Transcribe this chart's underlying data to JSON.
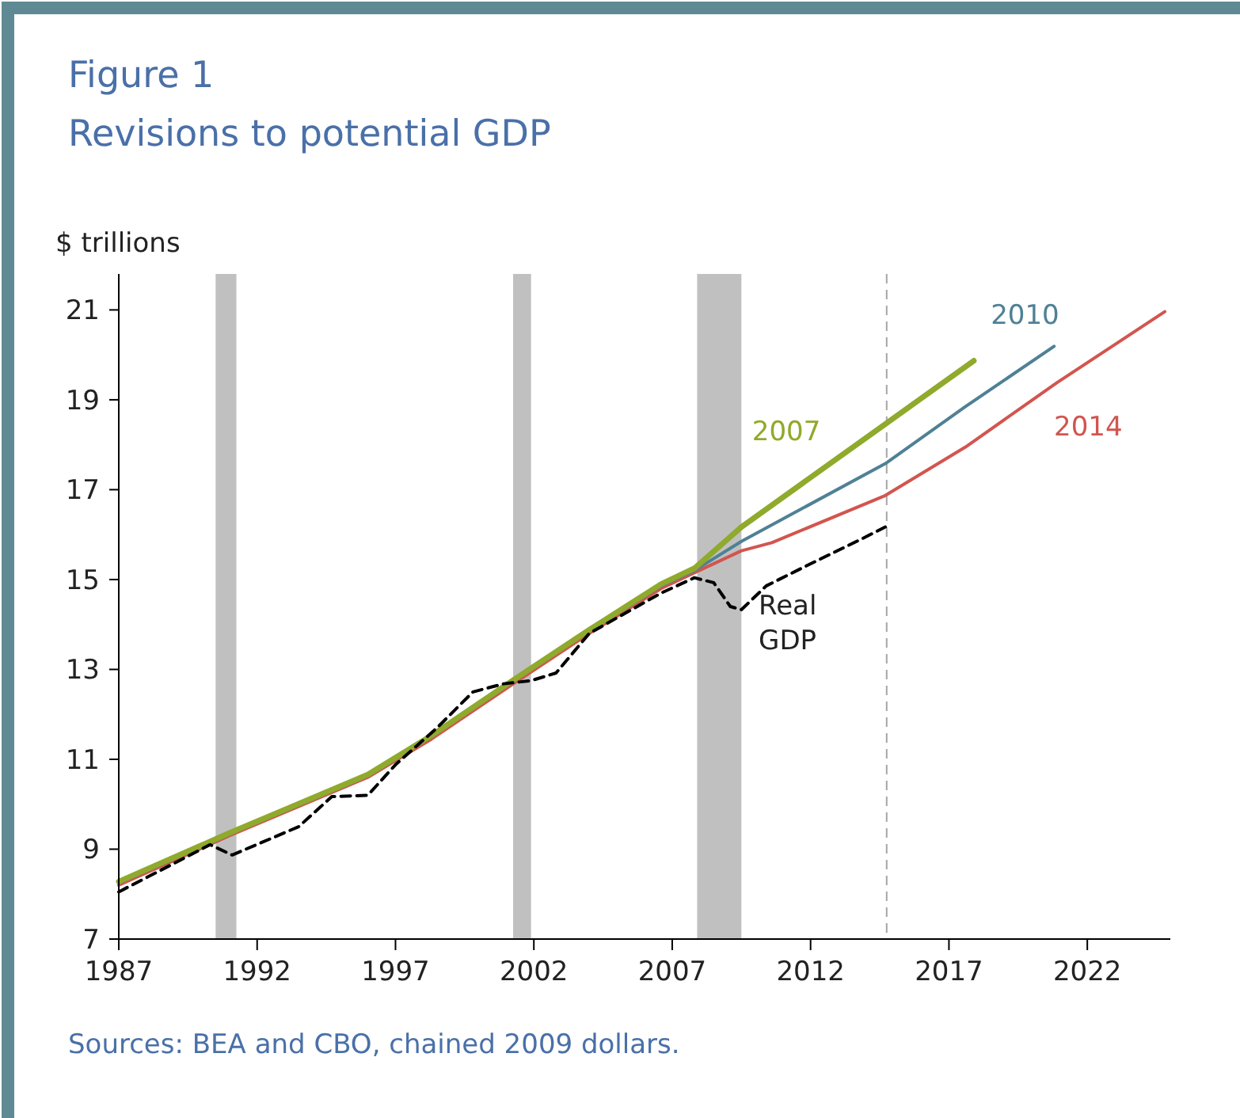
{
  "chart_data": {
    "type": "line",
    "title": "Figure 1",
    "subtitle": "Revisions to potential GDP",
    "ylabel": "$ trillions",
    "xlim": [
      1987,
      2025
    ],
    "xticks": [
      1987,
      1992,
      1997,
      2002,
      2007,
      2012,
      2017,
      2022
    ],
    "ylim": [
      7,
      21.8
    ],
    "yticks": [
      7,
      9,
      11,
      13,
      15,
      17,
      19,
      21
    ],
    "grid": false,
    "bands": [
      {
        "axis": "x",
        "from": 1990.5,
        "to": 1991.25,
        "color": "#c0c0c0"
      },
      {
        "axis": "x",
        "from": 2001.25,
        "to": 2001.9,
        "color": "#c0c0c0"
      },
      {
        "axis": "x",
        "from": 2007.9,
        "to": 2009.5,
        "color": "#c0c0c0"
      }
    ],
    "ref_lines": [
      {
        "axis": "x",
        "value": 2014.75,
        "color": "#a6a6a6",
        "line_style": "dashed"
      }
    ],
    "annotations": [
      "Sources: BEA and CBO, chained 2009 dollars."
    ],
    "series": [
      {
        "name": "2014",
        "color": "#d2554f",
        "x": [
          1987,
          1991,
          1996,
          1998.3,
          2001.3,
          2004,
          2006.6,
          2007.8,
          2009.5,
          2010.6,
          2014.7,
          2017.6,
          2020.9,
          2024.8
        ],
        "values": [
          8.2,
          9.3,
          10.6,
          11.45,
          12.7,
          13.8,
          14.8,
          15.15,
          15.64,
          15.82,
          16.87,
          17.95,
          19.38,
          20.96
        ]
      },
      {
        "name": "2010",
        "color": "#4f8195",
        "x": [
          1987,
          1991,
          1996,
          1998.3,
          2001.3,
          2004,
          2006.6,
          2007.8,
          2009.5,
          2014.7,
          2017.6,
          2020.8
        ],
        "values": [
          8.25,
          9.33,
          10.63,
          11.5,
          12.75,
          13.85,
          14.86,
          15.2,
          15.85,
          17.58,
          18.85,
          20.19
        ]
      },
      {
        "name": "2007",
        "color": "#8faa2c",
        "x": [
          1987,
          1991,
          1996,
          1998.3,
          2001.3,
          2004,
          2006.6,
          2007.8,
          2009.5,
          2014.7,
          2017.9
        ],
        "values": [
          8.28,
          9.36,
          10.66,
          11.53,
          12.78,
          13.88,
          14.9,
          15.25,
          16.17,
          18.46,
          19.87
        ]
      },
      {
        "name": "Real GDP",
        "color": "#000000",
        "line_style": "dashed",
        "x": [
          1987,
          1990.3,
          1991.1,
          1993.5,
          1994.7,
          1996,
          1997,
          1998.5,
          1999.8,
          2000.9,
          2001.9,
          2002.8,
          2004,
          2006.6,
          2007.8,
          2008.5,
          2009.1,
          2009.5,
          2010.4,
          2011.9,
          2013.9,
          2014.7
        ],
        "values": [
          8.05,
          9.1,
          8.87,
          9.5,
          10.17,
          10.2,
          10.88,
          11.7,
          12.5,
          12.68,
          12.75,
          12.92,
          13.8,
          14.7,
          15.04,
          14.93,
          14.4,
          14.33,
          14.86,
          15.32,
          15.92,
          16.17
        ]
      }
    ]
  }
}
